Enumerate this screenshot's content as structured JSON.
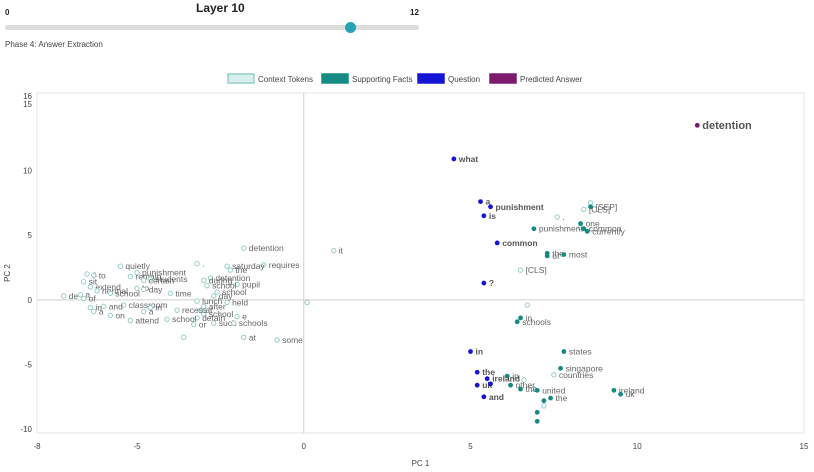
{
  "slider": {
    "title": "Layer 10",
    "min_label": "0",
    "max_label": "12",
    "value": 10,
    "min": 0,
    "max": 12,
    "phase": "Phase 4: Answer Extraction"
  },
  "colors": {
    "context": "#97cec8",
    "context_fill": "#d9efed",
    "supporting": "#158b85",
    "question": "#1515d6",
    "answer": "#7d1a6d",
    "accent": "#26a2b5"
  },
  "chart_data": {
    "type": "scatter",
    "title": "",
    "xlabel": "PC 1",
    "ylabel": "PC 2",
    "xlim": [
      -8,
      15
    ],
    "ylim": [
      -10.3,
      16
    ],
    "xticks": [
      -8,
      -5,
      0,
      5,
      10,
      15
    ],
    "yticks": [
      -10,
      -5,
      0,
      5,
      10,
      15,
      16
    ],
    "ytick_labels": [
      "-10",
      "-5",
      "0",
      "5",
      "10",
      "15",
      "16"
    ],
    "legend": [
      {
        "key": "context",
        "label": "Context Tokens"
      },
      {
        "key": "supporting",
        "label": "Supporting Facts"
      },
      {
        "key": "question",
        "label": "Question"
      },
      {
        "key": "answer",
        "label": "Predicted Answer"
      }
    ],
    "series": [
      {
        "name": "Predicted Answer",
        "key": "answer",
        "points": [
          {
            "x": 11.8,
            "y": 13.5,
            "label": "detention",
            "bold": true,
            "size": "large"
          }
        ]
      },
      {
        "name": "Question",
        "key": "question",
        "points": [
          {
            "x": 4.5,
            "y": 10.9,
            "label": "what",
            "bold": true
          },
          {
            "x": 5.3,
            "y": 7.6,
            "label": "a",
            "bold": true
          },
          {
            "x": 5.6,
            "y": 7.2,
            "label": "punishment",
            "bold": true
          },
          {
            "x": 5.4,
            "y": 6.5,
            "label": "is",
            "bold": true
          },
          {
            "x": 5.8,
            "y": 4.4,
            "label": "common",
            "bold": true
          },
          {
            "x": 5.4,
            "y": 1.3,
            "label": "?",
            "bold": true
          },
          {
            "x": 5.0,
            "y": -4.0,
            "label": "in",
            "bold": true
          },
          {
            "x": 5.2,
            "y": -5.6,
            "label": "the",
            "bold": true
          },
          {
            "x": 5.5,
            "y": -6.1,
            "label": "ireland",
            "bold": true
          },
          {
            "x": 5.2,
            "y": -6.6,
            "label": "uk",
            "bold": true
          },
          {
            "x": 5.6,
            "y": -6.5,
            "label": "",
            "bold": true
          },
          {
            "x": 5.4,
            "y": -7.5,
            "label": "and",
            "bold": true
          }
        ]
      },
      {
        "name": "Supporting Facts",
        "key": "supporting",
        "points": [
          {
            "x": 8.6,
            "y": 7.2,
            "label": "[SEP]"
          },
          {
            "x": 8.3,
            "y": 5.9,
            "label": "one"
          },
          {
            "x": 8.4,
            "y": 5.5,
            "label": "common"
          },
          {
            "x": 8.5,
            "y": 5.3,
            "label": "currently"
          },
          {
            "x": 6.9,
            "y": 5.5,
            "label": "punishment"
          },
          {
            "x": 7.3,
            "y": 3.6,
            "label": "the"
          },
          {
            "x": 7.3,
            "y": 3.4,
            "label": "of"
          },
          {
            "x": 7.8,
            "y": 3.5,
            "label": "most"
          },
          {
            "x": 6.5,
            "y": -1.4,
            "label": "in"
          },
          {
            "x": 6.4,
            "y": -1.7,
            "label": "schools"
          },
          {
            "x": 7.8,
            "y": -4.0,
            "label": "states"
          },
          {
            "x": 7.7,
            "y": -5.3,
            "label": "singapore"
          },
          {
            "x": 6.1,
            "y": -5.9,
            "label": "in"
          },
          {
            "x": 6.2,
            "y": -6.6,
            "label": "other"
          },
          {
            "x": 6.5,
            "y": -6.9,
            "label": "the"
          },
          {
            "x": 7.0,
            "y": -7.0,
            "label": "united"
          },
          {
            "x": 7.4,
            "y": -7.6,
            "label": "the"
          },
          {
            "x": 9.3,
            "y": -7.0,
            "label": "ireland"
          },
          {
            "x": 9.5,
            "y": -7.3,
            "label": "uk"
          },
          {
            "x": 7.2,
            "y": -7.8,
            "label": ""
          },
          {
            "x": 7.0,
            "y": -8.7,
            "label": ""
          },
          {
            "x": 7.0,
            "y": -9.4,
            "label": ""
          }
        ]
      },
      {
        "name": "Context Tokens",
        "key": "context",
        "points": [
          {
            "x": 8.6,
            "y": 7.5,
            "label": ""
          },
          {
            "x": 8.4,
            "y": 7.0,
            "label": "[CLS]"
          },
          {
            "x": 7.6,
            "y": 6.4,
            "label": "."
          },
          {
            "x": 8.3,
            "y": 5.6,
            "label": ""
          },
          {
            "x": 6.5,
            "y": 2.3,
            "label": "[CLS]"
          },
          {
            "x": 6.7,
            "y": -0.4,
            "label": ""
          },
          {
            "x": 7.5,
            "y": -5.8,
            "label": "countries"
          },
          {
            "x": 6.6,
            "y": -6.2,
            "label": ""
          },
          {
            "x": 6.9,
            "y": -6.9,
            "label": ""
          },
          {
            "x": 7.2,
            "y": -8.2,
            "label": ""
          },
          {
            "x": 0.9,
            "y": 3.8,
            "label": "it"
          },
          {
            "x": 0.1,
            "y": -0.2,
            "label": ""
          },
          {
            "x": -1.8,
            "y": 4.0,
            "label": "detention"
          },
          {
            "x": -1.2,
            "y": 2.7,
            "label": "requires"
          },
          {
            "x": -2.3,
            "y": 2.6,
            "label": "saturday"
          },
          {
            "x": -2.2,
            "y": 2.3,
            "label": "the"
          },
          {
            "x": -3.2,
            "y": 2.8,
            "label": "."
          },
          {
            "x": -2.8,
            "y": 1.7,
            "label": "detention"
          },
          {
            "x": -3.0,
            "y": 1.5,
            "label": "during"
          },
          {
            "x": -2.0,
            "y": 1.2,
            "label": "pupil"
          },
          {
            "x": -2.9,
            "y": 1.1,
            "label": "school"
          },
          {
            "x": -2.6,
            "y": 0.6,
            "label": "school"
          },
          {
            "x": -2.7,
            "y": 0.3,
            "label": "day"
          },
          {
            "x": -3.2,
            "y": -0.1,
            "label": "lunch"
          },
          {
            "x": -2.3,
            "y": -0.2,
            "label": "held"
          },
          {
            "x": -3.0,
            "y": -0.5,
            "label": "after"
          },
          {
            "x": -3.1,
            "y": -0.8,
            "label": "at"
          },
          {
            "x": -3.0,
            "y": -1.1,
            "label": "school"
          },
          {
            "x": -2.0,
            "y": -1.3,
            "label": "e"
          },
          {
            "x": -3.2,
            "y": -1.4,
            "label": "detain"
          },
          {
            "x": -3.3,
            "y": -1.9,
            "label": "or"
          },
          {
            "x": -2.7,
            "y": -1.8,
            "label": "such"
          },
          {
            "x": -2.1,
            "y": -1.8,
            "label": "schools"
          },
          {
            "x": -3.6,
            "y": -2.9,
            "label": ""
          },
          {
            "x": -1.8,
            "y": -2.9,
            "label": "at"
          },
          {
            "x": -0.8,
            "y": -3.1,
            "label": "some"
          },
          {
            "x": -5.5,
            "y": 2.6,
            "label": "quietly"
          },
          {
            "x": -5.0,
            "y": 2.1,
            "label": "punishment"
          },
          {
            "x": -5.2,
            "y": 1.8,
            "label": "remain"
          },
          {
            "x": -4.6,
            "y": 1.6,
            "label": "students"
          },
          {
            "x": -4.8,
            "y": 1.5,
            "label": "certain"
          },
          {
            "x": -4.0,
            "y": 0.5,
            "label": "time"
          },
          {
            "x": -5.0,
            "y": 0.9,
            "label": "to"
          },
          {
            "x": -4.8,
            "y": 0.8,
            "label": "day"
          },
          {
            "x": -6.5,
            "y": 2.0,
            "label": "a"
          },
          {
            "x": -6.3,
            "y": 1.9,
            "label": "to"
          },
          {
            "x": -6.6,
            "y": 1.4,
            "label": "sit"
          },
          {
            "x": -6.4,
            "y": 1.0,
            "label": "extend"
          },
          {
            "x": -6.2,
            "y": 0.7,
            "label": "normal"
          },
          {
            "x": -5.8,
            "y": 0.5,
            "label": "school"
          },
          {
            "x": -6.7,
            "y": 0.4,
            "label": "a"
          },
          {
            "x": -6.6,
            "y": 0.1,
            "label": "of"
          },
          {
            "x": -7.2,
            "y": 0.3,
            "label": "de"
          },
          {
            "x": -6.4,
            "y": -0.6,
            "label": "in"
          },
          {
            "x": -5.4,
            "y": -0.4,
            "label": "classroom"
          },
          {
            "x": -6.0,
            "y": -0.5,
            "label": "and"
          },
          {
            "x": -6.3,
            "y": -0.9,
            "label": "a"
          },
          {
            "x": -4.6,
            "y": -0.6,
            "label": "in"
          },
          {
            "x": -4.8,
            "y": -0.9,
            "label": "a"
          },
          {
            "x": -3.8,
            "y": -0.8,
            "label": "recess"
          },
          {
            "x": -5.8,
            "y": -1.2,
            "label": "on"
          },
          {
            "x": -5.2,
            "y": -1.6,
            "label": "attend"
          },
          {
            "x": -4.1,
            "y": -1.5,
            "label": "school"
          }
        ]
      }
    ]
  }
}
